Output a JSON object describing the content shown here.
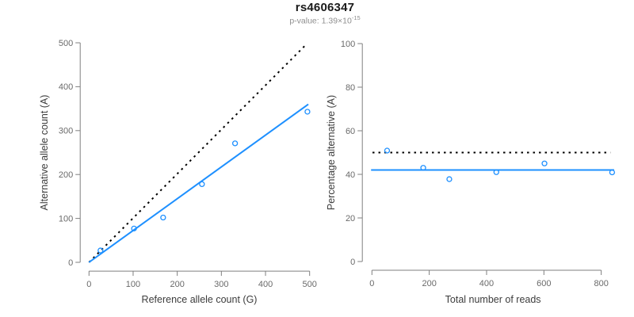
{
  "title": "rs4606347",
  "subtitle": {
    "label": "p-value: ",
    "value": "1.39×10",
    "exponent": "-15"
  },
  "colors": {
    "accent_blue": "#1E90FF",
    "dotted_black": "#000000",
    "axis": "#7f7f7f",
    "tick_label": "#6a6a6a",
    "axis_label": "#3c3c3c",
    "title": "#1a1a1a",
    "subtitle": "#8f8f8f",
    "background": "#ffffff"
  },
  "chart_data": [
    {
      "type": "scatter",
      "name": "allele-counts-scatter",
      "xlabel": "Reference allele count (G)",
      "ylabel": "Alternative allele count (A)",
      "xlim": [
        0,
        500
      ],
      "ylim": [
        0,
        500
      ],
      "xticks": [
        0,
        100,
        200,
        300,
        400,
        500
      ],
      "yticks": [
        0,
        100,
        200,
        300,
        400,
        500
      ],
      "grid": false,
      "marker": "open-circle",
      "points": [
        [
          26,
          27
        ],
        [
          102,
          77
        ],
        [
          168,
          102
        ],
        [
          256,
          178
        ],
        [
          331,
          271
        ],
        [
          495,
          343
        ]
      ],
      "lines": [
        {
          "name": "identity-line",
          "style": "dotted",
          "color": "#000000",
          "x1": 0,
          "y1": 0,
          "x2": 491,
          "y2": 495
        },
        {
          "name": "regression-line",
          "style": "solid",
          "color": "#1E90FF",
          "x1": 0,
          "y1": 0,
          "x2": 497,
          "y2": 360
        }
      ]
    },
    {
      "type": "scatter",
      "name": "percentage-alternative-scatter",
      "xlabel": "Total number of reads",
      "ylabel": "Percentage alternative (A)",
      "xlim": [
        0,
        845
      ],
      "ylim": [
        0,
        100
      ],
      "xticks": [
        0,
        200,
        400,
        600,
        800
      ],
      "yticks": [
        0,
        20,
        40,
        60,
        80,
        100
      ],
      "grid": false,
      "marker": "open-circle",
      "points": [
        [
          53,
          50.9
        ],
        [
          179,
          43.0
        ],
        [
          270,
          37.8
        ],
        [
          434,
          41.0
        ],
        [
          602,
          45.0
        ],
        [
          838,
          40.9
        ]
      ],
      "lines": [
        {
          "name": "expected-50pct-line",
          "style": "dotted",
          "color": "#000000",
          "x1": 2,
          "y1": 50,
          "x2": 832,
          "y2": 50
        },
        {
          "name": "fitted-percentage-line",
          "style": "solid",
          "color": "#1E90FF",
          "x1": -3,
          "y1": 42,
          "x2": 845,
          "y2": 42
        }
      ]
    }
  ]
}
